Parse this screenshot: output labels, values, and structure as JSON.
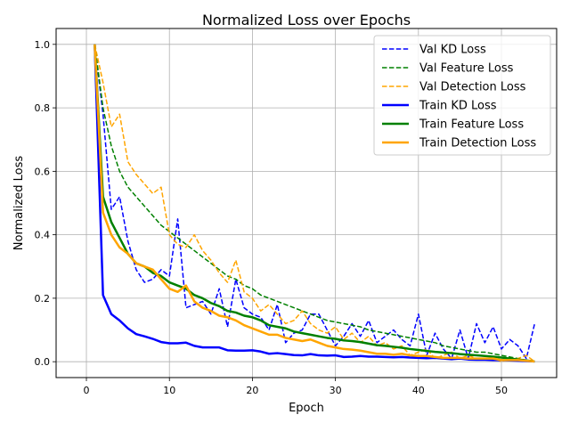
{
  "chart_data": {
    "type": "line",
    "title": "Normalized Loss over Epochs",
    "xlabel": "Epoch",
    "ylabel": "Normalized Loss",
    "xlim": [
      -3.65,
      56.65
    ],
    "ylim": [
      -0.05,
      1.05
    ],
    "xticks": [
      0,
      10,
      20,
      30,
      40,
      50
    ],
    "yticks": [
      0.0,
      0.2,
      0.4,
      0.6,
      0.8,
      1.0
    ],
    "xtick_labels": [
      "0",
      "10",
      "20",
      "30",
      "40",
      "50"
    ],
    "ytick_labels": [
      "0.0",
      "0.2",
      "0.4",
      "0.6",
      "0.8",
      "1.0"
    ],
    "grid": true,
    "legend_position": "top-right",
    "x": [
      1,
      2,
      3,
      4,
      5,
      6,
      7,
      8,
      9,
      10,
      11,
      12,
      13,
      14,
      15,
      16,
      17,
      18,
      19,
      20,
      21,
      22,
      23,
      24,
      25,
      26,
      27,
      28,
      29,
      30,
      31,
      32,
      33,
      34,
      35,
      36,
      37,
      38,
      39,
      40,
      41,
      42,
      43,
      44,
      45,
      46,
      47,
      48,
      49,
      50,
      51,
      52,
      53,
      54
    ],
    "series": [
      {
        "name": "Val KD Loss",
        "color": "#0000ff",
        "style": "dashed",
        "values": [
          1.0,
          0.78,
          0.48,
          0.52,
          0.38,
          0.29,
          0.25,
          0.26,
          0.29,
          0.27,
          0.45,
          0.17,
          0.18,
          0.19,
          0.15,
          0.23,
          0.11,
          0.26,
          0.17,
          0.15,
          0.14,
          0.1,
          0.18,
          0.06,
          0.09,
          0.1,
          0.15,
          0.15,
          0.1,
          0.05,
          0.08,
          0.12,
          0.08,
          0.13,
          0.06,
          0.08,
          0.1,
          0.07,
          0.05,
          0.15,
          0.02,
          0.09,
          0.04,
          0.01,
          0.1,
          0.01,
          0.12,
          0.06,
          0.11,
          0.04,
          0.07,
          0.05,
          0.01,
          0.12
        ]
      },
      {
        "name": "Val Feature Loss",
        "color": "#008000",
        "style": "dashed",
        "values": [
          1.0,
          0.8,
          0.68,
          0.6,
          0.55,
          0.52,
          0.49,
          0.46,
          0.43,
          0.41,
          0.39,
          0.37,
          0.35,
          0.33,
          0.31,
          0.29,
          0.27,
          0.26,
          0.24,
          0.23,
          0.21,
          0.2,
          0.19,
          0.18,
          0.17,
          0.16,
          0.15,
          0.14,
          0.13,
          0.125,
          0.12,
          0.115,
          0.11,
          0.1,
          0.095,
          0.09,
          0.085,
          0.08,
          0.075,
          0.07,
          0.065,
          0.06,
          0.05,
          0.045,
          0.04,
          0.035,
          0.03,
          0.03,
          0.025,
          0.02,
          0.015,
          0.01,
          0.005,
          0.0
        ]
      },
      {
        "name": "Val Detection Loss",
        "color": "#ffa500",
        "style": "dashed",
        "values": [
          1.0,
          0.88,
          0.74,
          0.78,
          0.63,
          0.59,
          0.56,
          0.53,
          0.55,
          0.4,
          0.37,
          0.36,
          0.4,
          0.35,
          0.32,
          0.28,
          0.25,
          0.32,
          0.22,
          0.2,
          0.16,
          0.18,
          0.15,
          0.12,
          0.13,
          0.16,
          0.12,
          0.1,
          0.09,
          0.11,
          0.07,
          0.09,
          0.06,
          0.08,
          0.05,
          0.06,
          0.04,
          0.05,
          0.02,
          0.03,
          0.04,
          0.01,
          0.02,
          0.03,
          0.01,
          0.02,
          0.01,
          0.01,
          0.01,
          0.0,
          0.01,
          0.01,
          0.02,
          0.0
        ]
      },
      {
        "name": "Train KD Loss",
        "color": "#0000ff",
        "style": "solid",
        "values": [
          1.0,
          0.21,
          0.15,
          0.13,
          0.105,
          0.087,
          0.08,
          0.072,
          0.062,
          0.058,
          0.058,
          0.06,
          0.05,
          0.045,
          0.045,
          0.045,
          0.036,
          0.035,
          0.035,
          0.036,
          0.032,
          0.025,
          0.027,
          0.024,
          0.021,
          0.02,
          0.024,
          0.02,
          0.019,
          0.02,
          0.015,
          0.016,
          0.018,
          0.016,
          0.016,
          0.015,
          0.014,
          0.015,
          0.013,
          0.012,
          0.011,
          0.012,
          0.01,
          0.008,
          0.01,
          0.007,
          0.006,
          0.006,
          0.005,
          0.005,
          0.004,
          0.003,
          0.002,
          0.001
        ]
      },
      {
        "name": "Train Feature Loss",
        "color": "#008000",
        "style": "solid",
        "values": [
          1.0,
          0.52,
          0.44,
          0.39,
          0.34,
          0.31,
          0.3,
          0.28,
          0.27,
          0.25,
          0.24,
          0.23,
          0.21,
          0.2,
          0.185,
          0.175,
          0.16,
          0.155,
          0.145,
          0.14,
          0.13,
          0.115,
          0.11,
          0.105,
          0.095,
          0.09,
          0.085,
          0.08,
          0.075,
          0.072,
          0.067,
          0.065,
          0.062,
          0.057,
          0.052,
          0.05,
          0.047,
          0.044,
          0.04,
          0.037,
          0.034,
          0.031,
          0.029,
          0.027,
          0.024,
          0.022,
          0.02,
          0.018,
          0.016,
          0.013,
          0.01,
          0.007,
          0.004,
          0.001
        ]
      },
      {
        "name": "Train Detection Loss",
        "color": "#ffa500",
        "style": "solid",
        "values": [
          1.0,
          0.47,
          0.4,
          0.36,
          0.34,
          0.31,
          0.3,
          0.29,
          0.26,
          0.23,
          0.22,
          0.24,
          0.19,
          0.17,
          0.16,
          0.145,
          0.14,
          0.13,
          0.115,
          0.105,
          0.095,
          0.085,
          0.085,
          0.075,
          0.07,
          0.065,
          0.07,
          0.06,
          0.05,
          0.045,
          0.04,
          0.038,
          0.035,
          0.03,
          0.025,
          0.025,
          0.022,
          0.025,
          0.02,
          0.018,
          0.018,
          0.015,
          0.012,
          0.012,
          0.012,
          0.01,
          0.01,
          0.01,
          0.01,
          0.005,
          0.005,
          0.005,
          0.003,
          0.001
        ]
      }
    ]
  }
}
